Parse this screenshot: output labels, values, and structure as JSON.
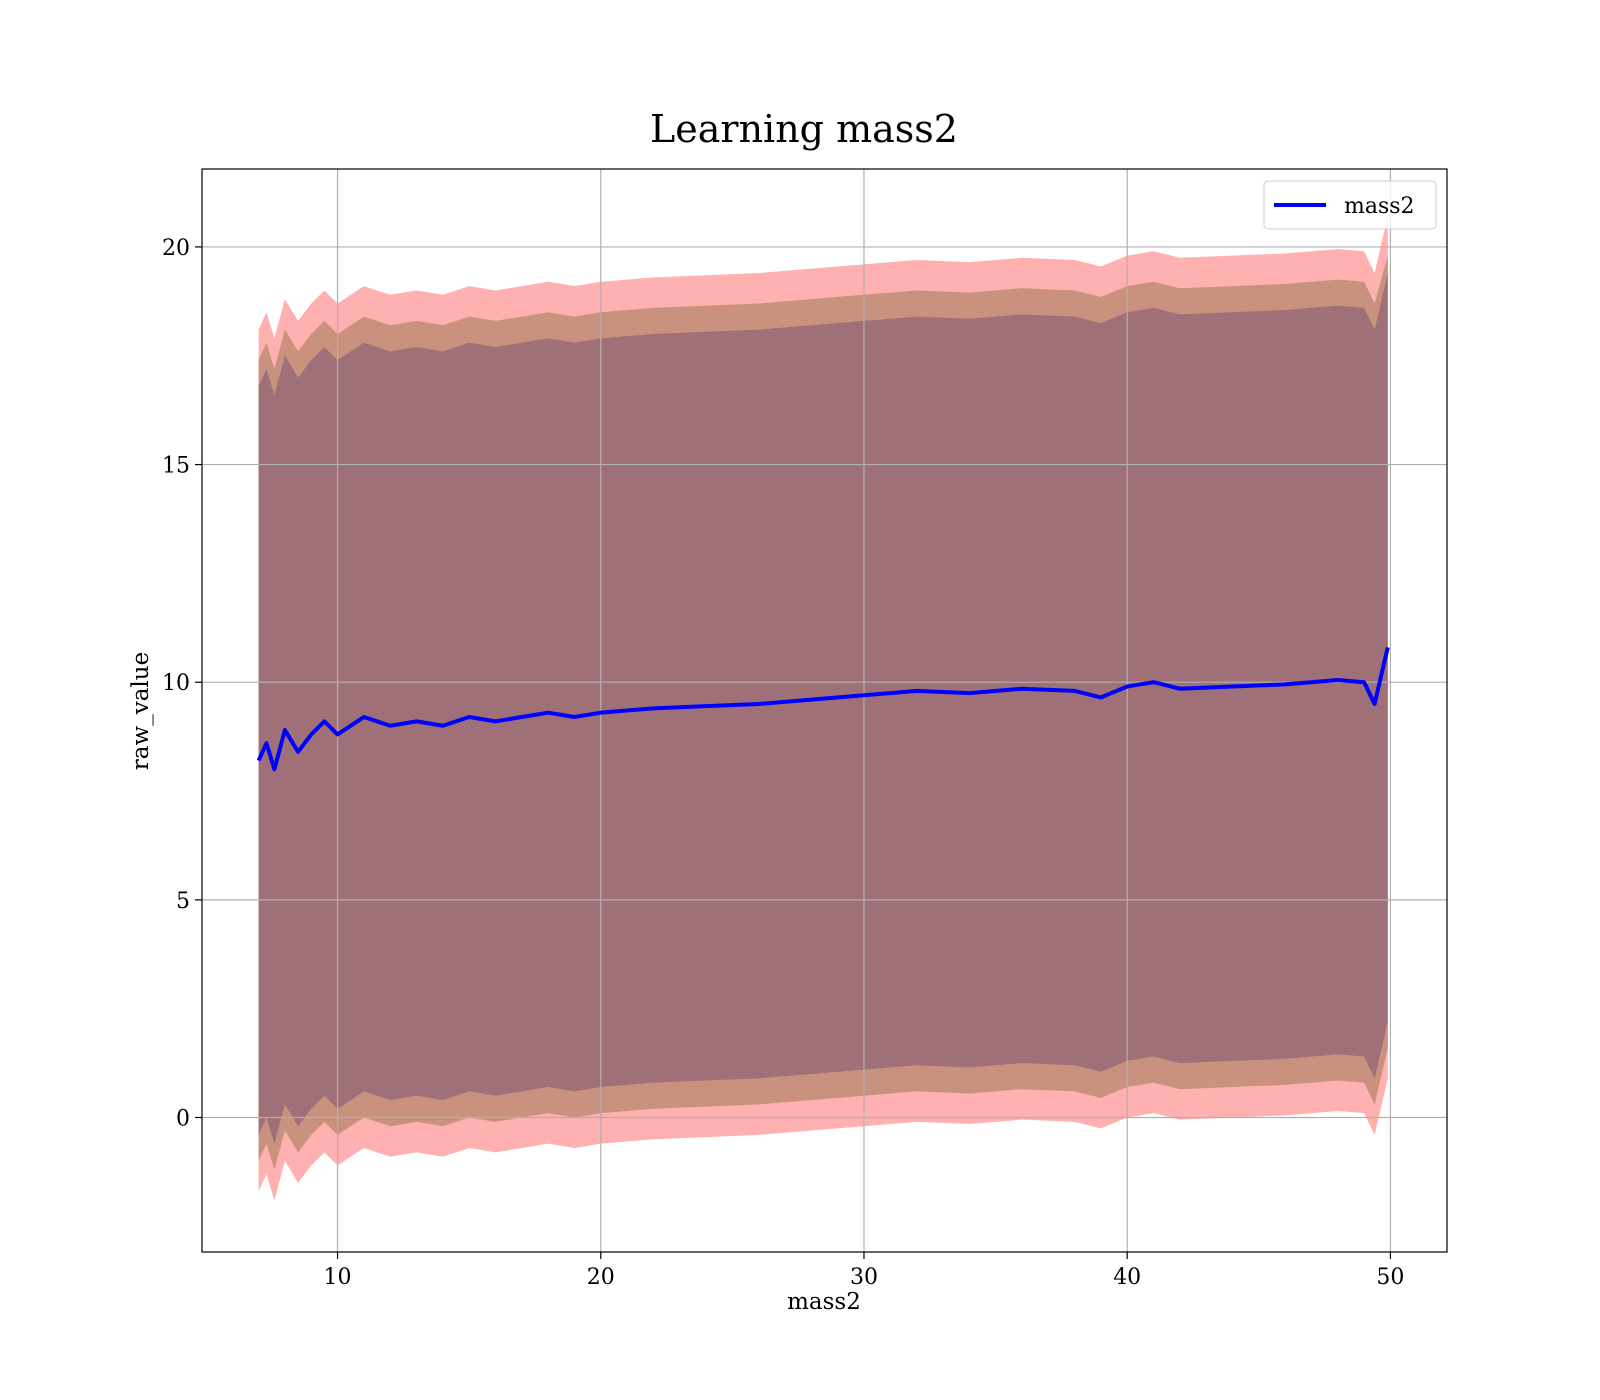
{
  "chart_data": {
    "type": "line",
    "title": "Learning mass2",
    "x_label": "mass2",
    "y_label": "raw_value",
    "x": [
      7,
      7.3,
      7.6,
      8,
      8.5,
      9,
      9.5,
      10,
      11,
      12,
      13,
      14,
      15,
      16,
      17,
      18,
      19,
      20,
      22,
      24,
      26,
      28,
      30,
      32,
      34,
      36,
      38,
      39,
      40,
      41,
      42,
      44,
      46,
      48,
      49,
      49.4,
      49.9
    ],
    "series": [
      {
        "name": "mass2",
        "color": "#0000ff",
        "values": [
          8.2,
          8.6,
          8.0,
          8.9,
          8.4,
          8.8,
          9.1,
          8.8,
          9.2,
          9.0,
          9.1,
          9.0,
          9.2,
          9.1,
          9.2,
          9.3,
          9.2,
          9.3,
          9.4,
          9.45,
          9.5,
          9.6,
          9.7,
          9.8,
          9.75,
          9.85,
          9.8,
          9.65,
          9.9,
          10.0,
          9.85,
          9.9,
          9.95,
          10.05,
          10.0,
          9.5,
          10.8
        ]
      }
    ],
    "bands": [
      {
        "color": "#ffb0b0",
        "upper": [
          18.1,
          18.5,
          17.9,
          18.8,
          18.3,
          18.7,
          19.0,
          18.7,
          19.1,
          18.9,
          19.0,
          18.9,
          19.1,
          19.0,
          19.1,
          19.2,
          19.1,
          19.2,
          19.3,
          19.35,
          19.4,
          19.5,
          19.6,
          19.7,
          19.65,
          19.75,
          19.7,
          19.55,
          19.8,
          19.9,
          19.75,
          19.8,
          19.85,
          19.95,
          19.9,
          19.4,
          20.7
        ],
        "lower": [
          -1.7,
          -1.3,
          -1.9,
          -1.0,
          -1.5,
          -1.1,
          -0.8,
          -1.1,
          -0.7,
          -0.9,
          -0.8,
          -0.9,
          -0.7,
          -0.8,
          -0.7,
          -0.6,
          -0.7,
          -0.6,
          -0.5,
          -0.45,
          -0.4,
          -0.3,
          -0.2,
          -0.1,
          -0.15,
          -0.05,
          -0.1,
          -0.25,
          0.0,
          0.1,
          -0.05,
          0.0,
          0.05,
          0.15,
          0.1,
          -0.4,
          0.9
        ]
      },
      {
        "color": "#c8927f",
        "upper": [
          17.4,
          17.8,
          17.2,
          18.1,
          17.6,
          18.0,
          18.3,
          18.0,
          18.4,
          18.2,
          18.3,
          18.2,
          18.4,
          18.3,
          18.4,
          18.5,
          18.4,
          18.5,
          18.6,
          18.65,
          18.7,
          18.8,
          18.9,
          19.0,
          18.95,
          19.05,
          19.0,
          18.85,
          19.1,
          19.2,
          19.05,
          19.1,
          19.15,
          19.25,
          19.2,
          18.7,
          19.8
        ],
        "lower": [
          -1.0,
          -0.6,
          -1.2,
          -0.3,
          -0.8,
          -0.4,
          -0.1,
          -0.4,
          0.0,
          -0.2,
          -0.1,
          -0.2,
          0.0,
          -0.1,
          0.0,
          0.1,
          0.0,
          0.1,
          0.2,
          0.25,
          0.3,
          0.4,
          0.5,
          0.6,
          0.55,
          0.65,
          0.6,
          0.45,
          0.7,
          0.8,
          0.65,
          0.7,
          0.75,
          0.85,
          0.8,
          0.3,
          1.6
        ]
      },
      {
        "color": "#a07078",
        "upper": [
          16.8,
          17.2,
          16.6,
          17.5,
          17.0,
          17.4,
          17.7,
          17.4,
          17.8,
          17.6,
          17.7,
          17.6,
          17.8,
          17.7,
          17.8,
          17.9,
          17.8,
          17.9,
          18.0,
          18.05,
          18.1,
          18.2,
          18.3,
          18.4,
          18.35,
          18.45,
          18.4,
          18.25,
          18.5,
          18.6,
          18.45,
          18.5,
          18.55,
          18.65,
          18.6,
          18.1,
          19.4
        ],
        "lower": [
          -0.4,
          0.0,
          -0.6,
          0.3,
          -0.2,
          0.2,
          0.5,
          0.2,
          0.6,
          0.4,
          0.5,
          0.4,
          0.6,
          0.5,
          0.6,
          0.7,
          0.6,
          0.7,
          0.8,
          0.85,
          0.9,
          1.0,
          1.1,
          1.2,
          1.15,
          1.25,
          1.2,
          1.05,
          1.3,
          1.4,
          1.25,
          1.3,
          1.35,
          1.45,
          1.4,
          0.9,
          2.2
        ]
      }
    ],
    "xlim": [
      4.85,
      52.15
    ],
    "ylim": [
      -3.09,
      21.79
    ],
    "xticks": [
      10,
      20,
      30,
      40,
      50
    ],
    "yticks": [
      0,
      5,
      10,
      15,
      20
    ],
    "grid": true,
    "legend": "upper right"
  }
}
